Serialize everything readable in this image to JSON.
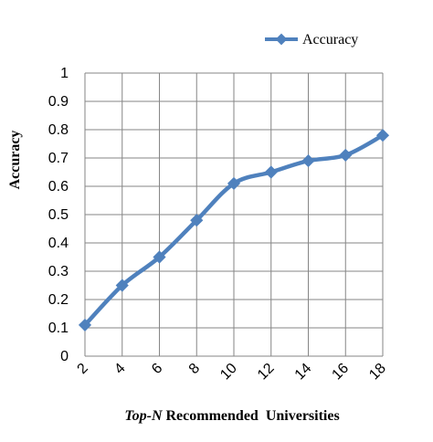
{
  "chart_data": {
    "type": "line",
    "x": [
      2,
      4,
      6,
      8,
      10,
      12,
      14,
      16,
      18
    ],
    "series": [
      {
        "name": "Accuracy",
        "values": [
          0.11,
          0.25,
          0.35,
          0.48,
          0.61,
          0.65,
          0.69,
          0.71,
          0.78
        ]
      }
    ],
    "xlabel_italic": "Top-N",
    "xlabel_rest": " Recommended  Universities",
    "ylabel": "Accuracy",
    "ylim": [
      0,
      1
    ],
    "yticks": [
      "0",
      "0.1",
      "0.2",
      "0.3",
      "0.4",
      "0.5",
      "0.6",
      "0.7",
      "0.8",
      "0.9",
      "1"
    ],
    "xticks": [
      "2",
      "4",
      "6",
      "8",
      "10",
      "12",
      "14",
      "16",
      "18"
    ],
    "grid": true,
    "legend_position": "top-right",
    "color": "#4f81bd",
    "marker": "diamond"
  }
}
